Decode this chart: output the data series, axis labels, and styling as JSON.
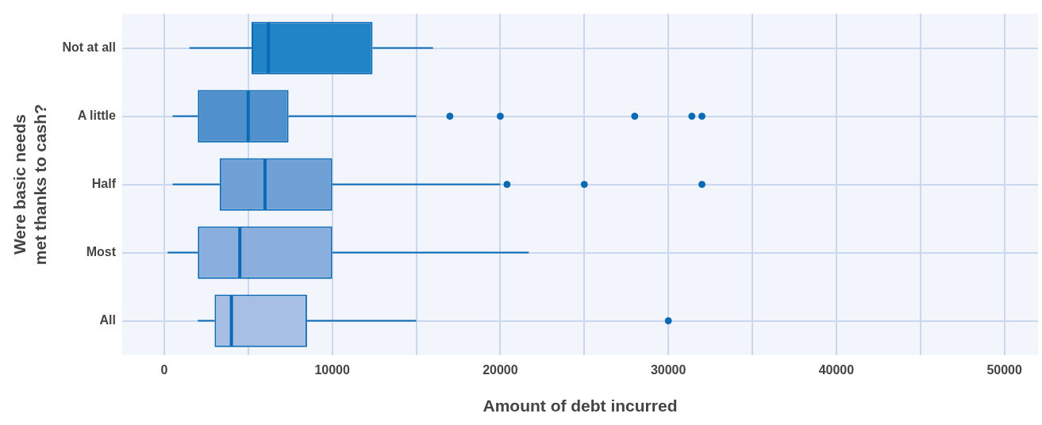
{
  "chart_data": {
    "type": "box",
    "orientation": "horizontal",
    "xlabel": "Amount of debt incurred",
    "ylabel": "Were basic needs\nmet thanks to cash?",
    "categories": [
      "Not at all",
      "A little",
      "Half",
      "Most",
      "All"
    ],
    "colors": [
      "#2184c7",
      "#4f90cd",
      "#6fa1d6",
      "#8aafde",
      "#a7bfe4"
    ],
    "series": [
      {
        "color": "#0b6ab5",
        "boxes": [
          {
            "low": 1500,
            "q1": 5200,
            "median": 6200,
            "q3": 12400,
            "high": 16000
          },
          {
            "low": 500,
            "q1": 2000,
            "median": 5000,
            "q3": 7400,
            "high": 15000,
            "outliers": [
              17000,
              20000,
              28000,
              31400,
              32000
            ]
          },
          {
            "low": 500,
            "q1": 3300,
            "median": 6000,
            "q3": 10000,
            "high": 20000,
            "outliers": [
              20400,
              25000,
              32000
            ]
          },
          {
            "low": 200,
            "q1": 2000,
            "median": 4500,
            "q3": 10000,
            "high": 21700
          },
          {
            "low": 2000,
            "q1": 3000,
            "median": 4000,
            "q3": 8500,
            "high": 15000,
            "outliers": [
              30000
            ]
          }
        ]
      }
    ],
    "xlim": [
      -2500,
      52000
    ],
    "xticks": [
      0,
      {
        "value": 5000,
        "label": null
      },
      10000,
      {
        "value": 15000,
        "label": null
      },
      20000,
      {
        "value": 25000,
        "label": null
      },
      30000,
      {
        "value": 35000,
        "label": null
      },
      40000,
      {
        "value": 45000,
        "label": null
      },
      50000
    ],
    "grid": true
  }
}
